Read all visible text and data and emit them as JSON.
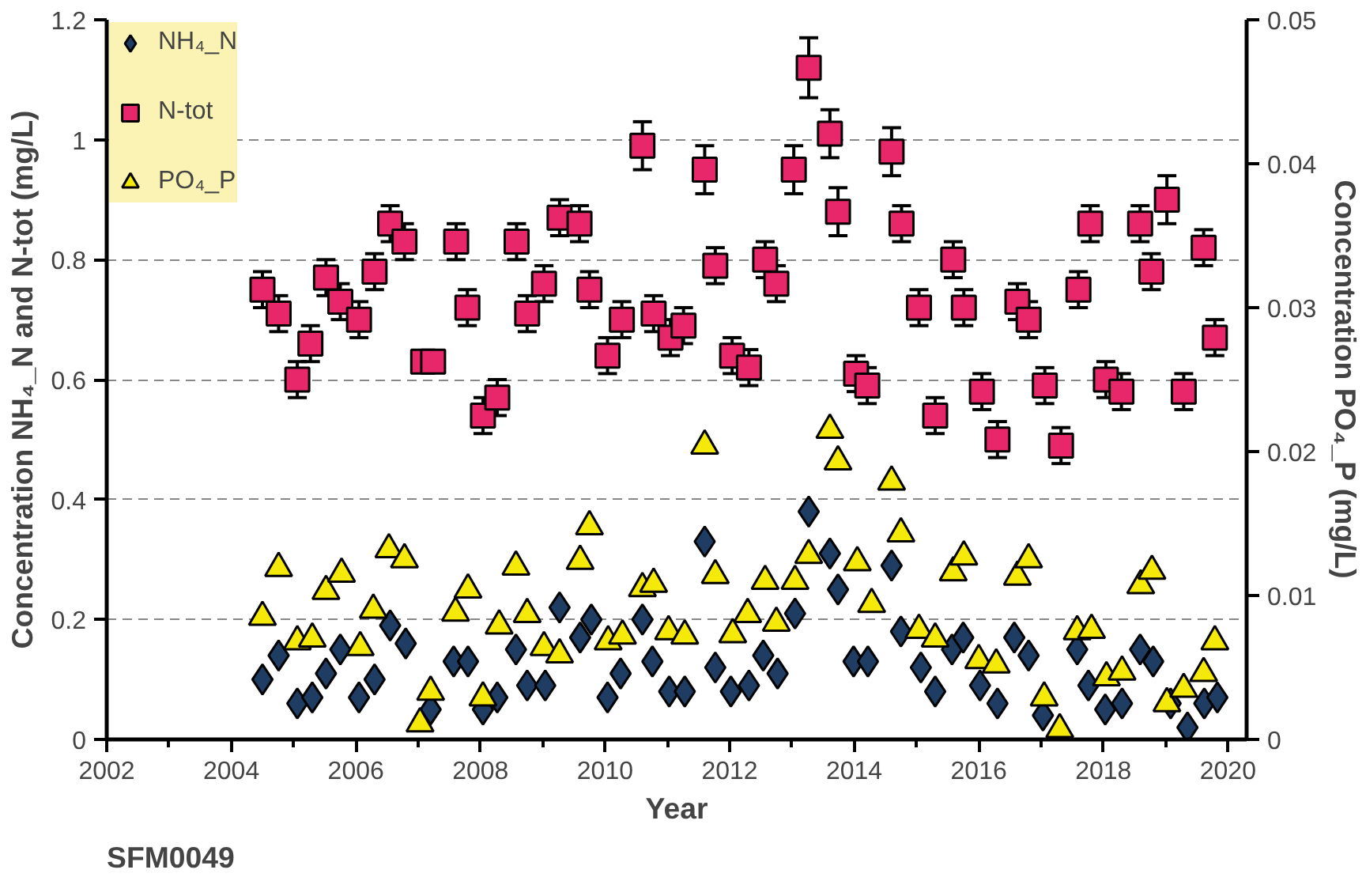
{
  "chart_data": {
    "type": "scatter",
    "xlabel": "Year",
    "ylabel": "Concentration NH₄_N and N-tot (mg/L)",
    "y2label": "Concentration PO₄_P (mg/L)",
    "xlim": [
      2002,
      2020.3
    ],
    "xticks": [
      2002,
      {
        "value": 2003,
        "label": null
      },
      2004,
      {
        "value": 2005,
        "label": null
      },
      2006,
      {
        "value": 2007,
        "label": null
      },
      2008,
      {
        "value": 2009,
        "label": null
      },
      2010,
      {
        "value": 2011,
        "label": null
      },
      2012,
      {
        "value": 2013,
        "label": null
      },
      2014,
      {
        "value": 2015,
        "label": null
      },
      2016,
      {
        "value": 2017,
        "label": null
      },
      2018,
      {
        "value": 2019,
        "label": null
      },
      2020
    ],
    "ylim": [
      0,
      1.2
    ],
    "yticks": [
      0,
      0.2,
      0.4,
      0.6,
      0.8,
      1,
      1.2
    ],
    "y2lim": [
      0,
      0.05
    ],
    "y2ticks": [
      0,
      0.01,
      0.02,
      0.03,
      0.04,
      0.05
    ],
    "grid": "y",
    "legend": "top left",
    "annotations": [
      "SFM0049"
    ],
    "series": [
      {
        "name": "NH₄_N",
        "color": "#1f3d63",
        "marker": "diamond",
        "x": [
          2004.5,
          2004.76,
          2005.06,
          2005.3,
          2005.52,
          2005.75,
          2006.05,
          2006.3,
          2006.55,
          2006.8,
          2007.2,
          2007.57,
          2007.8,
          2008.04,
          2008.27,
          2008.57,
          2008.75,
          2009.04,
          2009.27,
          2009.6,
          2009.78,
          2010.04,
          2010.25,
          2010.6,
          2010.76,
          2011.03,
          2011.28,
          2011.6,
          2011.77,
          2012.02,
          2012.31,
          2012.54,
          2012.77,
          2013.05,
          2013.27,
          2013.61,
          2013.74,
          2013.99,
          2014.22,
          2014.6,
          2014.75,
          2015.07,
          2015.3,
          2015.57,
          2015.75,
          2016.02,
          2016.3,
          2016.57,
          2016.8,
          2017.03,
          2017.58,
          2017.76,
          2018.03,
          2018.3,
          2018.59,
          2018.8,
          2019.08,
          2019.35,
          2019.62,
          2019.83
        ],
        "values": [
          0.1,
          0.14,
          0.06,
          0.07,
          0.11,
          0.15,
          0.07,
          0.1,
          0.19,
          0.16,
          0.05,
          0.13,
          0.13,
          0.05,
          0.07,
          0.15,
          0.09,
          0.09,
          0.22,
          0.17,
          0.2,
          0.07,
          0.11,
          0.2,
          0.13,
          0.08,
          0.08,
          0.33,
          0.12,
          0.08,
          0.09,
          0.14,
          0.11,
          0.21,
          0.38,
          0.31,
          0.25,
          0.13,
          0.13,
          0.29,
          0.18,
          0.12,
          0.08,
          0.15,
          0.17,
          0.09,
          0.06,
          0.17,
          0.14,
          0.04,
          0.15,
          0.09,
          0.05,
          0.06,
          0.15,
          0.13,
          0.06,
          0.02,
          0.06,
          0.07
        ]
      },
      {
        "name": "N-tot",
        "color": "#e8266a",
        "marker": "square",
        "x": [
          2004.5,
          2004.76,
          2005.06,
          2005.27,
          2005.52,
          2005.75,
          2006.05,
          2006.3,
          2006.55,
          2006.78,
          2007.08,
          2007.24,
          2007.61,
          2007.79,
          2008.04,
          2008.27,
          2008.58,
          2008.75,
          2009.02,
          2009.27,
          2009.59,
          2009.75,
          2010.04,
          2010.27,
          2010.6,
          2010.78,
          2011.05,
          2011.26,
          2011.6,
          2011.77,
          2012.04,
          2012.31,
          2012.57,
          2012.75,
          2013.03,
          2013.27,
          2013.61,
          2013.74,
          2014.03,
          2014.21,
          2014.6,
          2014.76,
          2015.04,
          2015.3,
          2015.59,
          2015.76,
          2016.05,
          2016.3,
          2016.62,
          2016.8,
          2017.06,
          2017.32,
          2017.6,
          2017.79,
          2018.04,
          2018.29,
          2018.59,
          2018.77,
          2019.02,
          2019.29,
          2019.61,
          2019.79
        ],
        "values": [
          0.75,
          0.71,
          0.6,
          0.66,
          0.77,
          0.73,
          0.7,
          0.78,
          0.86,
          0.83,
          0.63,
          0.63,
          0.83,
          0.72,
          0.54,
          0.57,
          0.83,
          0.71,
          0.76,
          0.87,
          0.86,
          0.75,
          0.64,
          0.7,
          0.99,
          0.71,
          0.67,
          0.69,
          0.95,
          0.79,
          0.64,
          0.62,
          0.8,
          0.76,
          0.95,
          1.12,
          1.01,
          0.88,
          0.61,
          0.59,
          0.98,
          0.86,
          0.72,
          0.54,
          0.8,
          0.72,
          0.58,
          0.5,
          0.73,
          0.7,
          0.59,
          0.49,
          0.75,
          0.86,
          0.6,
          0.58,
          0.86,
          0.78,
          0.9,
          0.58,
          0.82,
          0.67
        ],
        "errors": [
          0.03,
          0.03,
          0.03,
          0.03,
          0.03,
          0.03,
          0.03,
          0.03,
          0.03,
          0.03,
          null,
          null,
          0.03,
          0.03,
          0.03,
          0.03,
          0.03,
          0.03,
          0.03,
          0.03,
          0.03,
          0.03,
          0.03,
          0.03,
          0.04,
          0.03,
          0.03,
          0.03,
          0.04,
          0.03,
          0.03,
          0.03,
          0.03,
          0.03,
          0.04,
          0.05,
          0.04,
          0.04,
          0.03,
          0.03,
          0.04,
          0.03,
          0.03,
          0.03,
          0.03,
          0.03,
          0.03,
          0.03,
          0.03,
          0.03,
          0.03,
          0.03,
          0.03,
          0.03,
          0.03,
          0.03,
          0.03,
          0.03,
          0.04,
          0.03,
          0.03,
          0.03
        ]
      },
      {
        "name": "PO₄_P",
        "color": "#f5e90a",
        "marker": "triangle",
        "axis": "y2",
        "x": [
          2004.5,
          2004.76,
          2005.06,
          2005.3,
          2005.52,
          2005.77,
          2006.07,
          2006.28,
          2006.53,
          2006.78,
          2007.03,
          2007.2,
          2007.6,
          2007.8,
          2008.04,
          2008.3,
          2008.57,
          2008.75,
          2009.02,
          2009.27,
          2009.6,
          2009.75,
          2010.05,
          2010.28,
          2010.6,
          2010.78,
          2011.02,
          2011.28,
          2011.6,
          2011.77,
          2012.05,
          2012.29,
          2012.57,
          2012.75,
          2013.05,
          2013.27,
          2013.61,
          2013.74,
          2014.05,
          2014.28,
          2014.6,
          2014.75,
          2015.04,
          2015.3,
          2015.59,
          2015.76,
          2016.0,
          2016.28,
          2016.62,
          2016.8,
          2017.05,
          2017.3,
          2017.58,
          2017.81,
          2018.05,
          2018.3,
          2018.6,
          2018.78,
          2019.02,
          2019.29,
          2019.61,
          2019.79
        ],
        "values": [
          0.0085,
          0.0119,
          0.0068,
          0.007,
          0.0103,
          0.0115,
          0.0064,
          0.009,
          0.0132,
          0.0125,
          0.0011,
          0.0033,
          0.0088,
          0.0104,
          0.0029,
          0.0079,
          0.012,
          0.0087,
          0.0064,
          0.0059,
          0.0124,
          0.0148,
          0.0068,
          0.0072,
          0.0105,
          0.0108,
          0.0075,
          0.0072,
          0.0204,
          0.0114,
          0.0073,
          0.0087,
          0.011,
          0.0081,
          0.011,
          0.0128,
          0.0215,
          0.0193,
          0.0123,
          0.0094,
          0.0179,
          0.0143,
          0.0076,
          0.007,
          0.0116,
          0.0127,
          0.0055,
          0.0052,
          0.0113,
          0.0125,
          0.0029,
          0.0007,
          0.0075,
          0.0076,
          0.0043,
          0.0047,
          0.0107,
          0.0117,
          0.0025,
          0.0035,
          0.0046,
          0.0068
        ]
      }
    ]
  }
}
